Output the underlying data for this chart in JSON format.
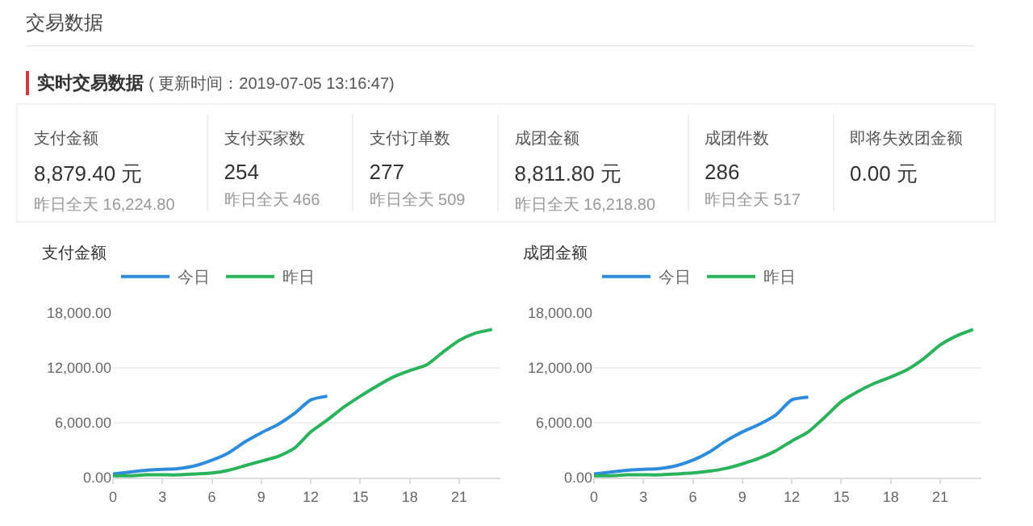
{
  "chart_data": [
    {
      "type": "other",
      "title": "交易数据",
      "subtitle": "实时交易数据",
      "categories": [
        "支付金额",
        "支付买家数",
        "支付订单数",
        "成团金额",
        "成团件数",
        "即将失效团金额"
      ],
      "value_labels": [
        "8,879.40 元",
        "254",
        "277",
        "8,811.80 元",
        "286",
        "0.00 元"
      ],
      "annotations": [
        "( 更新时间：2019-07-05 13:16:47)",
        "昨日全天  16,224.80",
        "昨日全天  466",
        "昨日全天  509",
        "昨日全天  16,218.80",
        "昨日全天  517"
      ]
    },
    {
      "type": "line",
      "title": "支付金额",
      "xlim": [
        0,
        23.5
      ],
      "xticks": [
        0,
        3,
        6,
        9,
        12,
        15,
        18,
        21
      ],
      "ylim": [
        0,
        18000
      ],
      "yticks": [
        {
          "value": 0,
          "label": "0.00"
        },
        {
          "value": 6000,
          "label": "6,000.00"
        },
        {
          "value": 12000,
          "label": "12,000.00"
        },
        {
          "value": 18000,
          "label": "18,000.00"
        }
      ],
      "grid": "y",
      "legend": "top left",
      "marker": "none",
      "series": [
        {
          "name": "今日",
          "color": "#2d8cdc",
          "x": [
            0,
            1,
            2,
            3,
            4,
            5,
            6,
            7,
            8,
            9,
            10,
            11,
            12,
            13
          ],
          "values": [
            400,
            600,
            800,
            900,
            1000,
            1300,
            1900,
            2700,
            3900,
            4900,
            5800,
            7000,
            8500,
            8900
          ]
        },
        {
          "name": "昨日",
          "color": "#2bb35b",
          "x": [
            0,
            1,
            2,
            3,
            4,
            5,
            6,
            7,
            8,
            9,
            10,
            11,
            12,
            13,
            14,
            15,
            16,
            17,
            18,
            19,
            20,
            21,
            22,
            23
          ],
          "values": [
            200,
            200,
            300,
            300,
            300,
            400,
            500,
            800,
            1300,
            1800,
            2300,
            3200,
            5000,
            6300,
            7700,
            8900,
            10000,
            11000,
            11700,
            12300,
            13700,
            15000,
            15800,
            16200
          ]
        }
      ]
    },
    {
      "type": "line",
      "title": "成团金额",
      "xlim": [
        0,
        23.5
      ],
      "xticks": [
        0,
        3,
        6,
        9,
        12,
        15,
        18,
        21
      ],
      "ylim": [
        0,
        18000
      ],
      "yticks": [
        {
          "value": 0,
          "label": "0.00"
        },
        {
          "value": 6000,
          "label": "6,000.00"
        },
        {
          "value": 12000,
          "label": "12,000.00"
        },
        {
          "value": 18000,
          "label": "18,000.00"
        }
      ],
      "grid": "y",
      "legend": "top left",
      "marker": "none",
      "series": [
        {
          "name": "今日",
          "color": "#2d8cdc",
          "x": [
            0,
            1,
            2,
            3,
            4,
            5,
            6,
            7,
            8,
            9,
            10,
            11,
            12,
            13
          ],
          "values": [
            400,
            600,
            800,
            900,
            1000,
            1300,
            1900,
            2800,
            4000,
            5000,
            5800,
            6800,
            8500,
            8800
          ]
        },
        {
          "name": "昨日",
          "color": "#2bb35b",
          "x": [
            0,
            1,
            2,
            3,
            4,
            5,
            6,
            7,
            8,
            9,
            10,
            11,
            12,
            13,
            14,
            15,
            16,
            17,
            18,
            19,
            20,
            21,
            22,
            23
          ],
          "values": [
            200,
            200,
            300,
            300,
            300,
            400,
            500,
            700,
            1000,
            1500,
            2100,
            2900,
            4000,
            5000,
            6600,
            8300,
            9400,
            10300,
            11000,
            11800,
            13000,
            14500,
            15500,
            16200
          ]
        }
      ]
    }
  ]
}
